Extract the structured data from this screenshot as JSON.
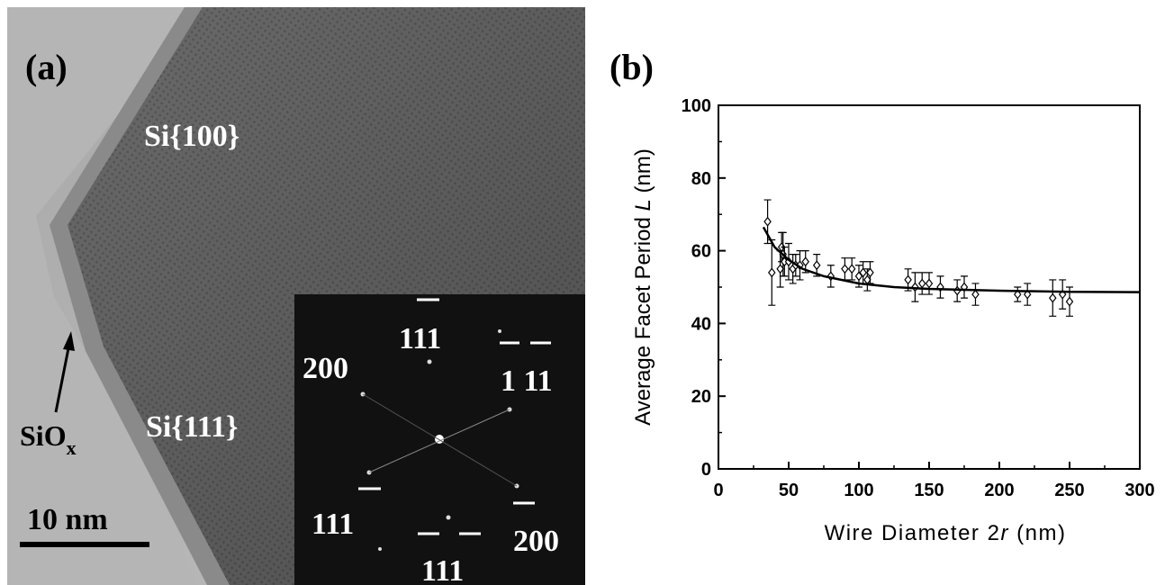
{
  "panel_a": {
    "label": "(a)",
    "facet_top": "Si{100}",
    "facet_bottom": "Si{111}",
    "oxide": "SiO",
    "oxide_sub": "x",
    "scale": "10 nm",
    "spots": [
      "111",
      "200",
      "1 11",
      "111",
      "111",
      "200"
    ]
  },
  "chart_data": {
    "type": "scatter",
    "panel_label": "(b)",
    "x_label": [
      "Wire Diameter 2",
      "r",
      " (nm)"
    ],
    "y_label": [
      "Average Facet Period ",
      "L",
      " (nm)"
    ],
    "xlim": [
      0,
      300
    ],
    "xticks": [
      0,
      50,
      100,
      150,
      200,
      250,
      300
    ],
    "ylim": [
      0,
      100
    ],
    "yticks": [
      0,
      20,
      40,
      60,
      80,
      100
    ],
    "series": [
      {
        "type": "scatter",
        "color": "#000000",
        "x": [
          35,
          38,
          44,
          45,
          46,
          47,
          50,
          53,
          55,
          58,
          62,
          70,
          80,
          90,
          95,
          100,
          103,
          106,
          108,
          135,
          140,
          145,
          150,
          158,
          170,
          175,
          183,
          213,
          220,
          238,
          245,
          250
        ],
        "values": [
          68,
          54,
          55,
          61,
          59,
          57,
          57,
          55,
          56,
          56,
          57,
          56,
          53,
          55,
          55,
          53,
          54,
          52,
          54,
          52,
          50,
          51,
          51,
          50,
          49,
          50,
          48,
          48,
          48,
          47,
          48,
          46
        ],
        "errors": [
          6,
          9,
          5,
          4,
          6,
          4,
          5,
          4,
          3,
          4,
          3,
          3,
          3,
          3,
          3,
          3,
          3,
          3,
          3,
          3,
          4,
          3,
          3,
          3,
          3,
          3,
          3,
          2,
          3,
          5,
          4,
          4
        ]
      },
      {
        "type": "line",
        "color": "#000000",
        "x": [
          32,
          40,
          50,
          60,
          75,
          100,
          125,
          150,
          200,
          250,
          300
        ],
        "values": [
          66.5,
          61,
          57.5,
          55,
          53,
          51,
          50,
          49.5,
          49,
          48.7,
          48.6
        ]
      }
    ]
  }
}
